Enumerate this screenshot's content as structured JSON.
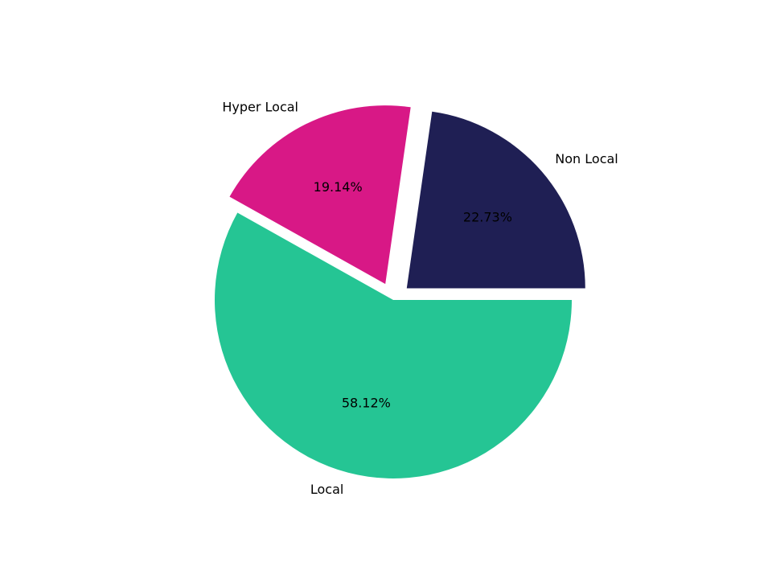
{
  "chart_data": {
    "type": "pie",
    "categories": [
      "Non Local",
      "Hyper Local",
      "Local"
    ],
    "values": [
      22.73,
      19.14,
      58.12
    ],
    "value_labels": [
      "22.73%",
      "19.14%",
      "58.12%"
    ],
    "colors": [
      "#1f1f54",
      "#d81886",
      "#25c594"
    ]
  }
}
